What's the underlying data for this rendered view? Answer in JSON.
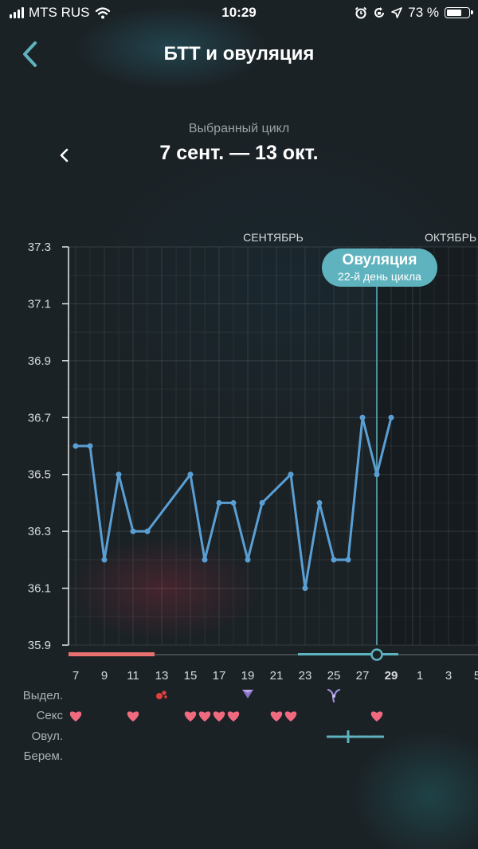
{
  "status_bar": {
    "carrier": "MTS RUS",
    "time": "10:29",
    "battery": "73 %",
    "battery_level": 0.73
  },
  "header": {
    "title": "БТТ и овуляция"
  },
  "cycle": {
    "caption": "Выбранный цикл",
    "range": "7 сент. — 13 окт."
  },
  "months": {
    "sep": "СЕНТЯБРЬ",
    "oct": "ОКТЯБРЬ"
  },
  "ovulation_marker": {
    "title": "Овуляция",
    "subtitle": "22-й день цикла"
  },
  "chart_data": {
    "type": "line",
    "title": "",
    "xlabel": "",
    "ylabel": "",
    "ylim": [
      35.9,
      37.3
    ],
    "yticks": [
      "37.3",
      "37.1",
      "36.9",
      "36.7",
      "36.5",
      "36.3",
      "36.1",
      "35.9"
    ],
    "xlim": [
      6.5,
      36
    ],
    "xtick_days": [
      7,
      9,
      11,
      13,
      15,
      17,
      19,
      21,
      23,
      25,
      27,
      29,
      31,
      33,
      35
    ],
    "xticks": [
      "7",
      "9",
      "11",
      "13",
      "15",
      "17",
      "19",
      "21",
      "23",
      "25",
      "27",
      "29",
      "1",
      "3",
      "5"
    ],
    "selected_tick": "29",
    "ovulation_day": 28,
    "grid": true,
    "series": [
      {
        "x": [
          7,
          8,
          9,
          10,
          11,
          12,
          15,
          16,
          17,
          18,
          19,
          20,
          22,
          23,
          24,
          25,
          26,
          27,
          28,
          29
        ],
        "y": [
          36.6,
          36.6,
          36.2,
          36.5,
          36.3,
          36.3,
          36.5,
          36.2,
          36.4,
          36.4,
          36.2,
          36.4,
          36.5,
          36.1,
          36.4,
          36.2,
          36.2,
          36.7,
          36.5,
          36.7
        ]
      }
    ],
    "period_days": [
      7,
      12
    ],
    "fertile_days": [
      23,
      29
    ],
    "color": "#5a9fd4"
  },
  "rows": {
    "discharge": "Выдел.",
    "sex": "Секс",
    "ovulation": "Овул.",
    "pregnancy": "Берем."
  },
  "sex_days": [
    7,
    11,
    15,
    16,
    17,
    18,
    21,
    22,
    28
  ],
  "discharge_marks": [
    {
      "day": 13,
      "icon": "blood-drops-icon"
    },
    {
      "day": 19,
      "icon": "diamond-drop-icon"
    },
    {
      "day": 25,
      "icon": "stretchy-discharge-icon"
    }
  ],
  "ovulation_tests": {
    "days": [
      25,
      26,
      27,
      28
    ],
    "positive_day": 26,
    "color": "#5fb3be"
  },
  "colors": {
    "accent": "#5fb3be",
    "line": "#5a9fd4",
    "period": "#e8706e",
    "heart": "#ef6a7f",
    "background": "#1b2226"
  }
}
